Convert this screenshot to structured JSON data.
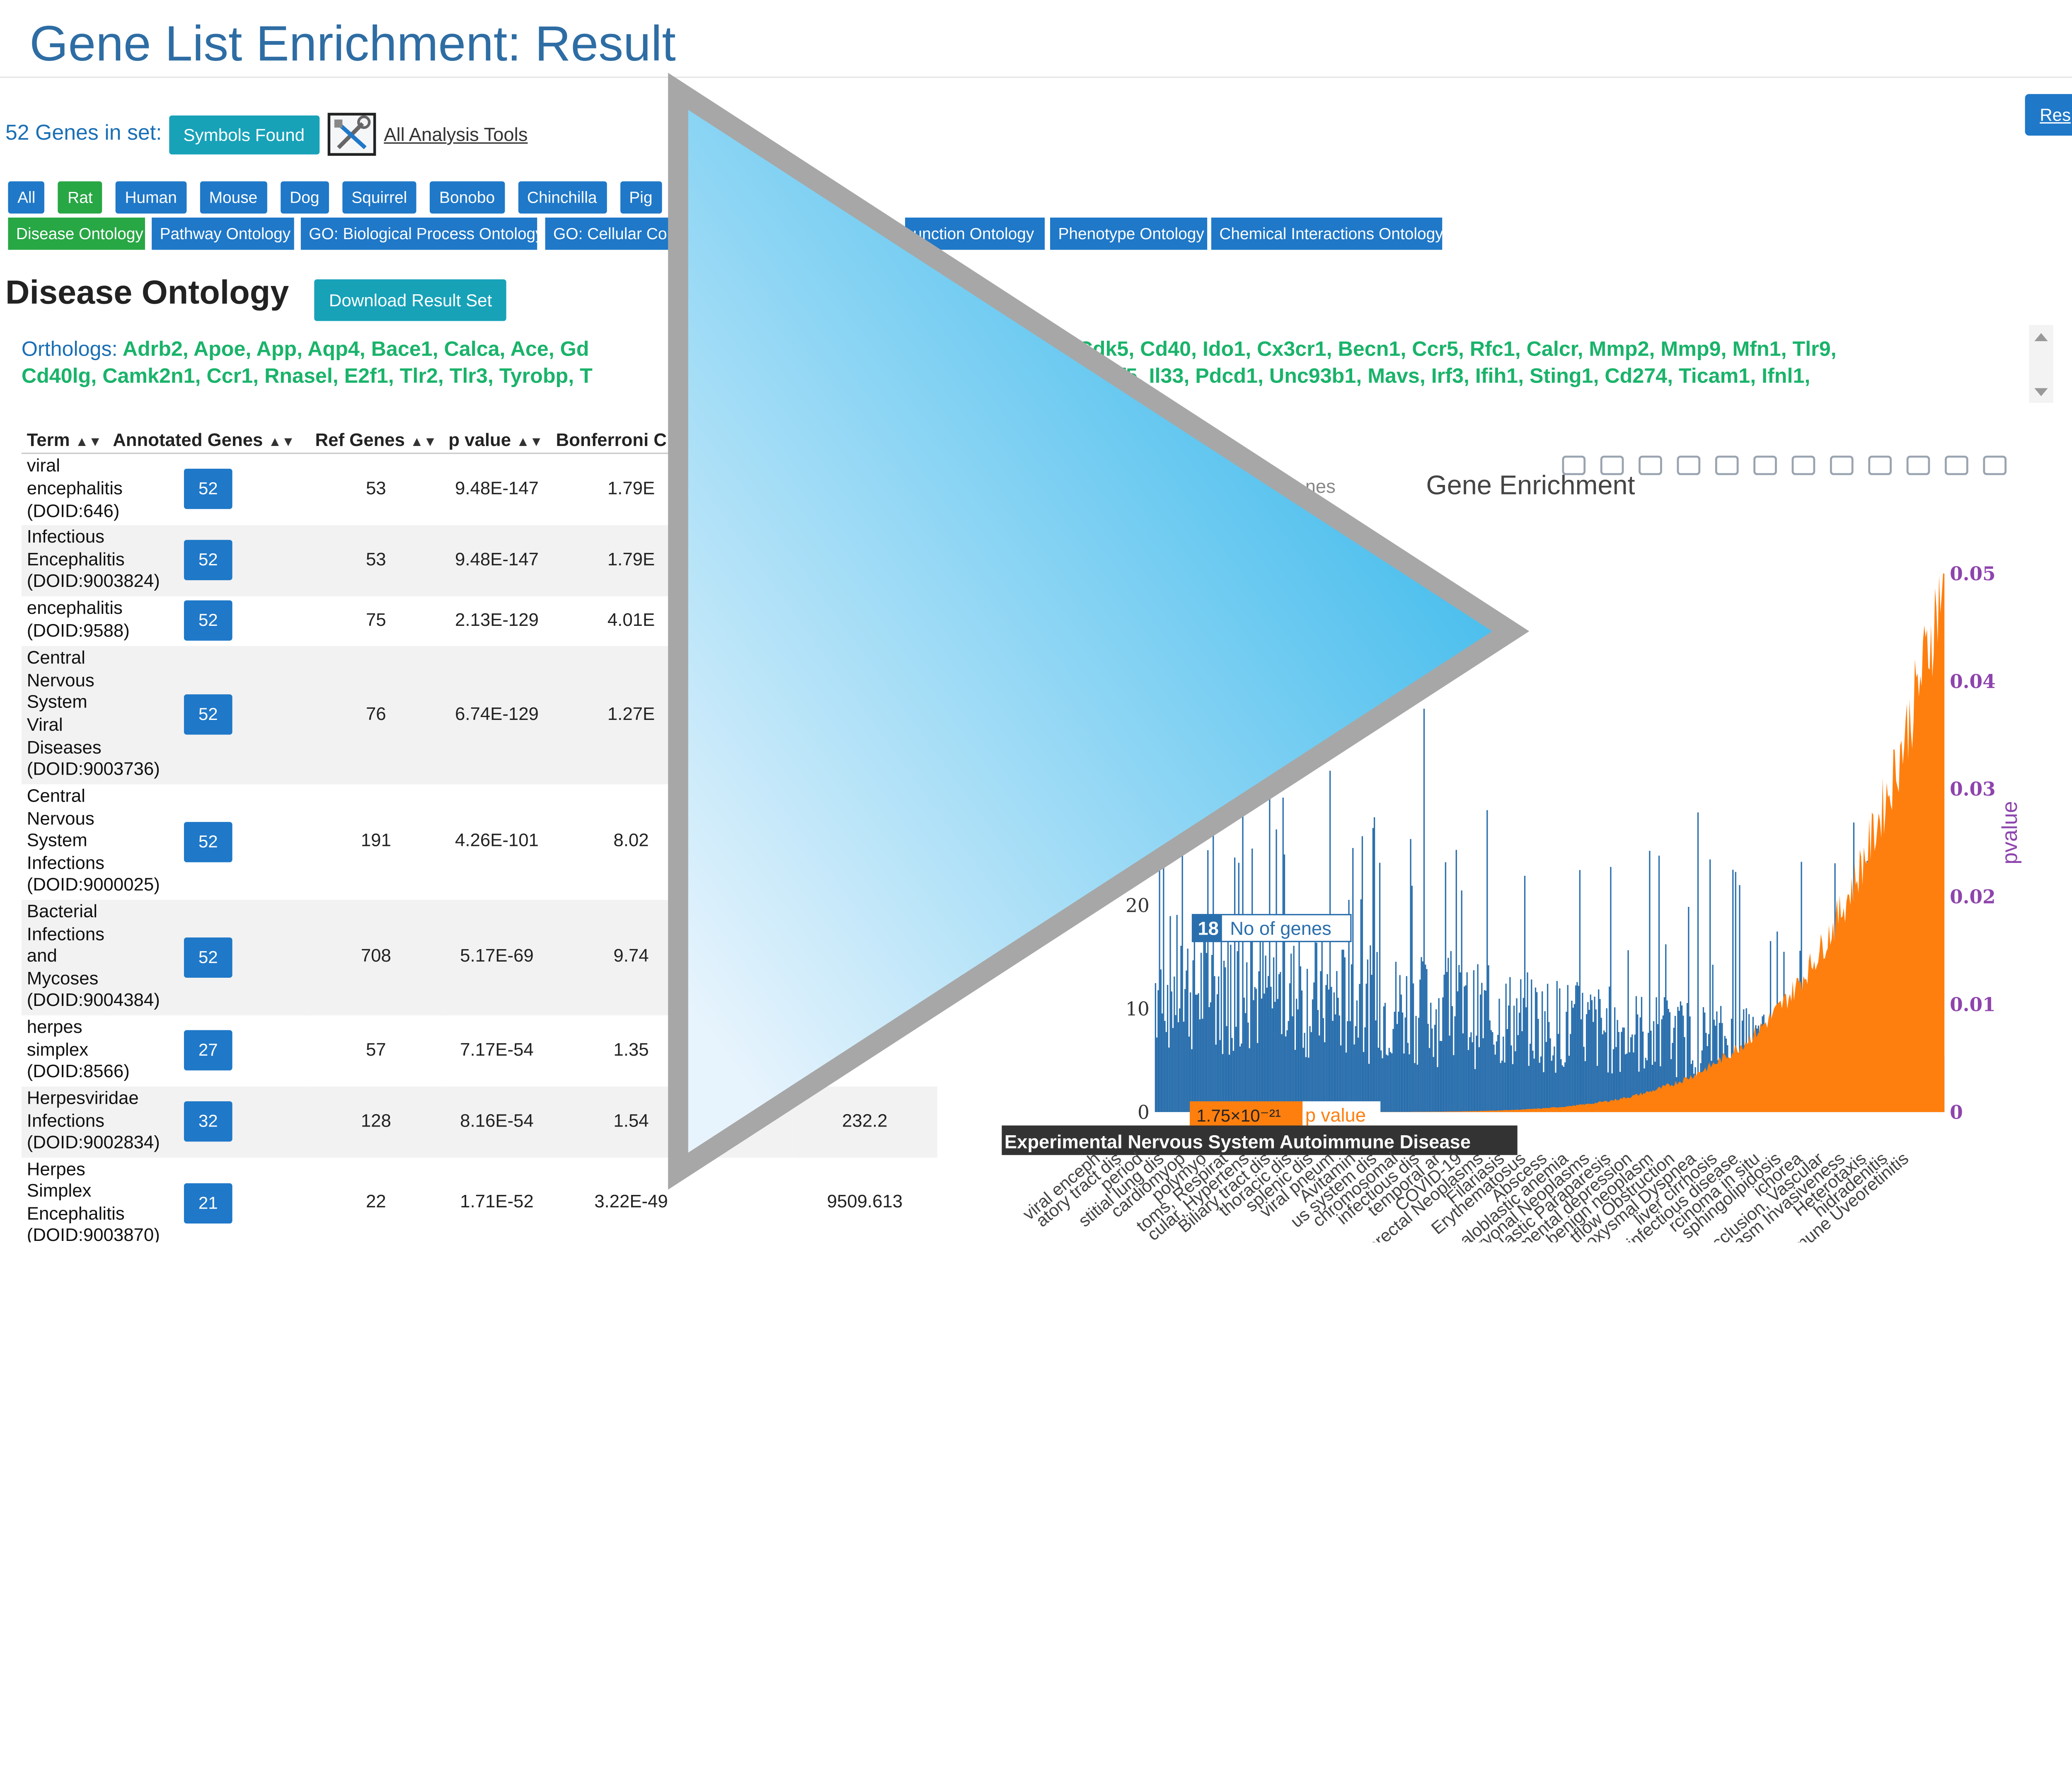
{
  "page": {
    "title": "Gene List Enrichment: Result",
    "genes_in_set_label": "52 Genes in set:",
    "symbols_found_button": "Symbols Found",
    "all_analysis_tools_link": "All Analysis Tools",
    "result_button_partial": "Res"
  },
  "species_tabs": [
    {
      "label": "All",
      "active": false
    },
    {
      "label": "Rat",
      "active": true
    },
    {
      "label": "Human",
      "active": false
    },
    {
      "label": "Mouse",
      "active": false
    },
    {
      "label": "Dog",
      "active": false
    },
    {
      "label": "Squirrel",
      "active": false
    },
    {
      "label": "Bonobo",
      "active": false
    },
    {
      "label": "Chinchilla",
      "active": false
    },
    {
      "label": "Pig",
      "active": false
    }
  ],
  "ontology_tabs": [
    {
      "label": "Disease Ontology",
      "active": true
    },
    {
      "label": "Pathway Ontology",
      "active": false
    },
    {
      "label": "GO: Biological Process Ontology",
      "active": false
    },
    {
      "label": "GO: Cellular Com",
      "active": false
    },
    {
      "label": "unction Ontology",
      "active": false
    },
    {
      "label": "Phenotype Ontology",
      "active": false
    },
    {
      "label": "Chemical Interactions Ontology",
      "active": false
    }
  ],
  "section": {
    "title": "Disease Ontology",
    "download_button": "Download Result Set"
  },
  "orthologs": {
    "label": "Orthologs:",
    "line1_left": "Adrb2,  Apoe,  App,  Aqp4,  Bace1,  Calca,  Ace,  Gd",
    "line1_right": "2,  Cdk5,  Cd40,  Ido1,  Cx3cr1,  Becn1,  Ccr5,  Rfc1,  Calcr,  Mmp2,  Mmp9,  Mfn1,  Tlr9,",
    "line2_left": "Cd40lg,  Camk2n1,  Ccr1,  Rnasel,  E2f1,  Tlr2,  Tlr3,  Tyrobp,  T",
    "line2_right": "m2,  Irf5,  Il33,  Pdcd1,  Unc93b1,  Mavs,  Irf3,  Ifih1,  Sting1,  Cd274,  Ticam1,  Ifnl1,"
  },
  "table": {
    "headers": [
      "Term",
      "Annotated Genes",
      "Ref Genes",
      "p value",
      "Bonferroni C",
      "",
      ""
    ],
    "rows": [
      {
        "term": "viral encephalitis (DOID:646)",
        "annotated": "52",
        "ref": "53",
        "p": "9.48E-147",
        "bonf": "1.79E",
        "c6": "",
        "c7": ""
      },
      {
        "term": "Infectious Encephalitis (DOID:9003824)",
        "annotated": "52",
        "ref": "53",
        "p": "9.48E-147",
        "bonf": "1.79E",
        "c6": "",
        "c7": ""
      },
      {
        "term": "encephalitis (DOID:9588)",
        "annotated": "52",
        "ref": "75",
        "p": "2.13E-129",
        "bonf": "4.01E",
        "c6": "",
        "c7": ""
      },
      {
        "term": "Central Nervous System Viral Diseases (DOID:9003736)",
        "annotated": "52",
        "ref": "76",
        "p": "6.74E-129",
        "bonf": "1.27E",
        "c6": "",
        "c7": ""
      },
      {
        "term": "Central Nervous System Infections (DOID:9000025)",
        "annotated": "52",
        "ref": "191",
        "p": "4.26E-101",
        "bonf": "8.02",
        "c6": "",
        "c7": ""
      },
      {
        "term": "Bacterial Infections and Mycoses (DOID:9004384)",
        "annotated": "52",
        "ref": "708",
        "p": "5.17E-69",
        "bonf": "9.74",
        "c6": "",
        "c7": ""
      },
      {
        "term": "herpes simplex (DOID:8566)",
        "annotated": "27",
        "ref": "57",
        "p": "7.17E-54",
        "bonf": "1.35",
        "c6": "",
        "c7": "3"
      },
      {
        "term": "Herpesviridae Infections (DOID:9002834)",
        "annotated": "32",
        "ref": "128",
        "p": "8.16E-54",
        "bonf": "1.54",
        "c6": "",
        "c7": "232.2"
      },
      {
        "term": "Herpes Simplex Encephalitis (DOID:9003870)",
        "annotated": "21",
        "ref": "22",
        "p": "1.71E-52",
        "bonf": "3.22E-49",
        "c6": "",
        "c7": "9509.613"
      }
    ]
  },
  "chart_data": {
    "type": "bar",
    "title": "Gene Enrichment",
    "legend_partial": "nes",
    "ylabel_right": "pvalue",
    "ylim_left": [
      0,
      45
    ],
    "ylim_right": [
      0,
      0.05
    ],
    "left_ticks": [
      "0",
      "10",
      "20"
    ],
    "right_ticks": [
      "0",
      "0.01",
      "0.02",
      "0.03",
      "0.04",
      "0.05"
    ],
    "series": [
      {
        "name": "No of genes",
        "axis": "left",
        "color": "#2a6fad"
      },
      {
        "name": "p value",
        "axis": "right",
        "color": "#ff7f0e"
      }
    ],
    "hover_left": {
      "value": "18",
      "label": "No of genes"
    },
    "hover_right": {
      "value": "1.75×10⁻²¹",
      "label": "p value"
    },
    "hover_category": "Experimental Nervous System Autoimmune Disease",
    "x_tick_labels": [
      "viral enceph",
      "atory tract dis",
      "period",
      "stitial lung dis",
      "cardiomyop",
      "polymyo",
      "toms, Respirat",
      "cular, Hypertens",
      "Biliary tract dis",
      "thoracic dis",
      "splenic dis",
      "viral pneum",
      "Avitamin",
      "us system dis",
      "chromosomal",
      "infectious dis",
      "temporal ar",
      "COVID-19",
      "orectal Neoplasms",
      "Filariasis",
      "Erythematosus",
      "Abscess",
      "aloblastic anemia",
      "bryonal Neoplasms",
      "plastic Paraparesis",
      "mental depression",
      "benign neoplasm",
      "tflow Obstruction",
      "roxysmal Dyspnea",
      "liver cirrhosis",
      "infectious disease",
      "rcinoma in situ",
      "sphingolipidosis",
      "ichorea",
      "Occlusion, Vascular",
      "asm Invasiveness",
      "Heterotaxis",
      "hidradenitis",
      "mune Uveoretinitis"
    ],
    "colors": {
      "bars": "#2a6fad",
      "pvalue": "#ff7f0e",
      "pvalue_axis": "#8e44ad"
    },
    "modebar_icons": [
      "camera-icon",
      "zoom-icon",
      "pan-icon",
      "box-select-icon",
      "lasso-icon",
      "zoom-in-icon",
      "zoom-out-icon",
      "autoscale-icon",
      "home-icon",
      "spike-icon",
      "hover-closest-icon",
      "hover-compare-icon"
    ]
  },
  "overlay": {
    "shape": "play-triangle-icon",
    "colors": {
      "start": "#29b3ea",
      "end": "#e8f4fd",
      "border": "#a7a7a7"
    }
  }
}
